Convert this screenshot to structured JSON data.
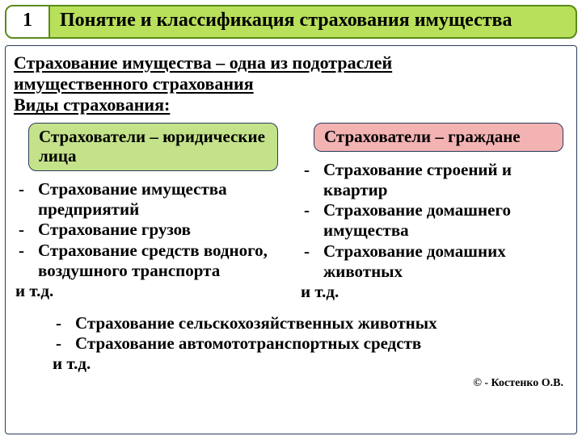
{
  "colors": {
    "header_bg": "#b8e05a",
    "header_border": "#5a8a1a",
    "badge_green": "#c4e28a",
    "badge_red": "#f3b3b3",
    "badge_border": "#2b3c5a",
    "body_border": "#2b3c5a",
    "text": "#000000",
    "page_bg": "#ffffff"
  },
  "typography": {
    "title_fontsize": 24,
    "body_fontsize": 21,
    "copyright_fontsize": 14,
    "font_family": "Times New Roman, serif",
    "weight": "bold"
  },
  "header": {
    "number": "1",
    "title": "Понятие и классификация страхования имущества"
  },
  "intro_lines": {
    "l1": "Страхование имущества – одна из подотраслей",
    "l2": "имущественного страхования",
    "l3": "Виды страхования:"
  },
  "columns": {
    "left": {
      "badge_color": "green",
      "badge": "Страхователи – юридические лица",
      "items": [
        "Страхование имущества предприятий",
        "Страхование грузов",
        "Страхование средств водного, воздушного транспорта"
      ],
      "etc": "и т.д."
    },
    "right": {
      "badge_color": "red",
      "badge": "Страхователи – граждане",
      "items": [
        "Страхование строений и квартир",
        "Страхование домашнего имущества",
        "Страхование домашних животных"
      ],
      "etc": "и т.д."
    }
  },
  "bottom": {
    "items": [
      "Страхование сельскохозяйственных животных",
      "Страхование автомототранспортных средств"
    ],
    "etc": "и т.д."
  },
  "copyright": "© - Костенко О.В."
}
